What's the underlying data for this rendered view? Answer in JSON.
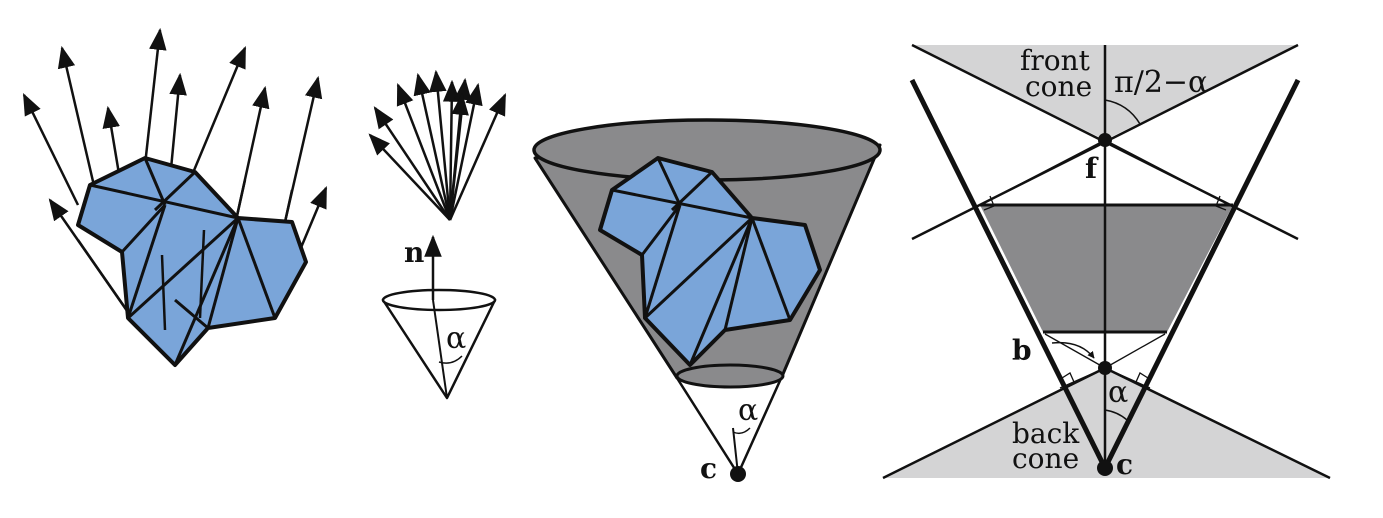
{
  "colors": {
    "facet_fill": "#7aa5d9",
    "cone_dark": "#8a8a8c",
    "cone_light": "#d4d4d5",
    "stroke": "#111111"
  },
  "panel_b": {
    "normal_label": "n",
    "angle_label": "α"
  },
  "panel_c": {
    "angle_label": "α",
    "apex_label": "c"
  },
  "panel_d": {
    "front_cone_line1": "front",
    "front_cone_line2": "cone",
    "front_angle_label": "π/2−α",
    "point_f_label": "f",
    "point_b_label": "b",
    "angle_label": "α",
    "back_cone_line1": "back",
    "back_cone_line2": "cone",
    "apex_label": "c"
  }
}
